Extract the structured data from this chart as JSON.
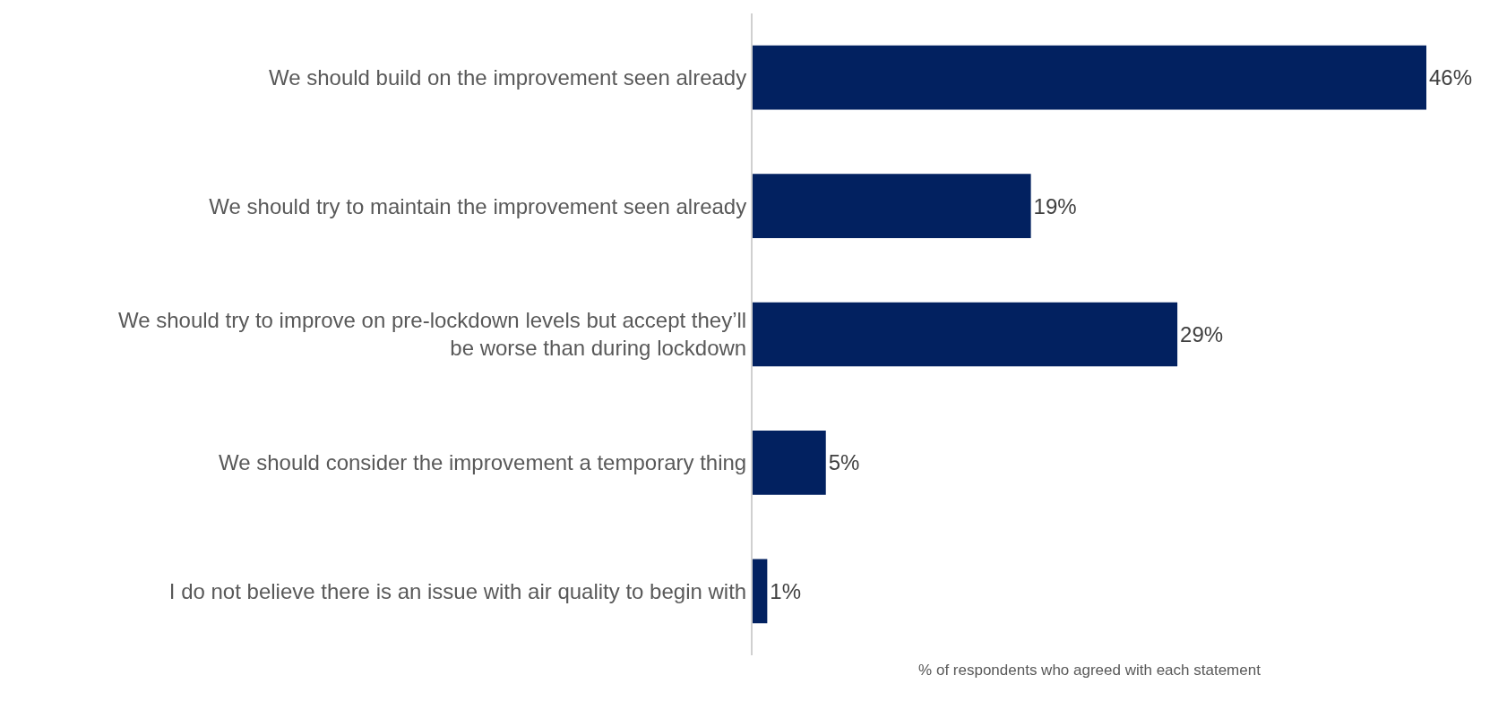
{
  "chart_data": {
    "type": "bar",
    "orientation": "horizontal",
    "categories": [
      "We should build on the improvement seen already",
      "We should try to maintain the improvement seen already",
      "We should try to improve on pre-lockdown levels but accept they’ll be worse than during lockdown",
      "We should consider the improvement a temporary thing",
      "I do not believe there is an issue with air quality to begin with"
    ],
    "values": [
      46,
      19,
      29,
      5,
      1
    ],
    "value_labels": [
      "46%",
      "19%",
      "29%",
      "5%",
      "1%"
    ],
    "color": "#022160",
    "xlim": [
      0,
      46
    ],
    "xlabel": "% of respondents who agreed with each statement",
    "grid": false
  }
}
